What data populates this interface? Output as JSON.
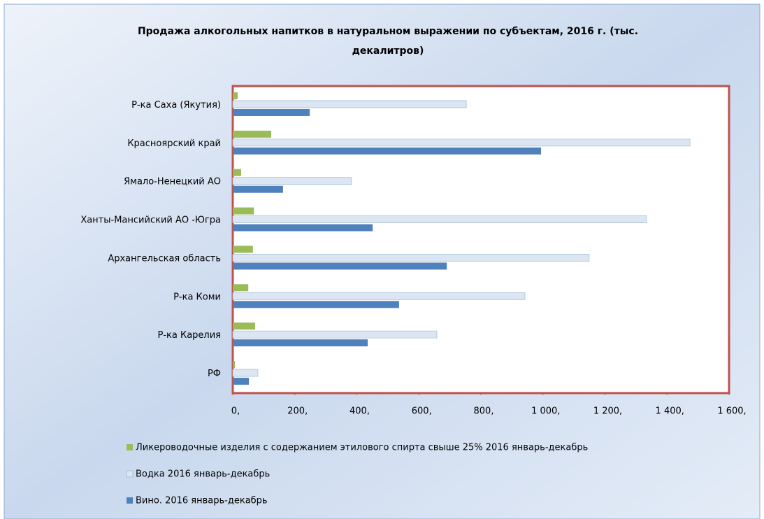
{
  "chart_data": {
    "type": "bar",
    "orientation": "horizontal",
    "title": "Продажа алкогольных напитков в натуральном выражении по субъектам, 2016 г. (тыс. декалитров)",
    "categories": [
      "Р-ка Саха (Якутия)",
      "Красноярский край",
      "Ямало-Ненецкий АО",
      "Ханты-Мансийский АО -Югра",
      "Архангельская область",
      "Р-ка Коми",
      "Р-ка Карелия",
      "РФ"
    ],
    "series": [
      {
        "name": "Ликероводочные изделия с содержанием этилового спирта свыше 25% 2016 январь-декабрь",
        "color": "#9bbb59",
        "values": [
          16,
          124,
          27,
          68,
          65,
          50,
          72,
          7
        ]
      },
      {
        "name": "Водка 2016 январь-декабрь",
        "color": "#dce6f2",
        "values": [
          753,
          1474,
          383,
          1334,
          1149,
          942,
          658,
          81
        ]
      },
      {
        "name": "Вино. 2016 январь-декабрь",
        "color": "#4f81bd",
        "values": [
          248,
          994,
          162,
          451,
          690,
          536,
          435,
          52
        ]
      }
    ],
    "xlim": [
      0,
      1600
    ],
    "xticks": [
      {
        "value": 0,
        "label": "0,"
      },
      {
        "value": 200,
        "label": "200,"
      },
      {
        "value": 400,
        "label": "400,"
      },
      {
        "value": 600,
        "label": "600,"
      },
      {
        "value": 800,
        "label": "800,"
      },
      {
        "value": 1000,
        "label": "1 000,"
      },
      {
        "value": 1200,
        "label": "1 200,"
      },
      {
        "value": 1400,
        "label": "1 400,"
      },
      {
        "value": 1600,
        "label": "1 600,"
      }
    ],
    "grid": false,
    "legend": "bottom"
  }
}
